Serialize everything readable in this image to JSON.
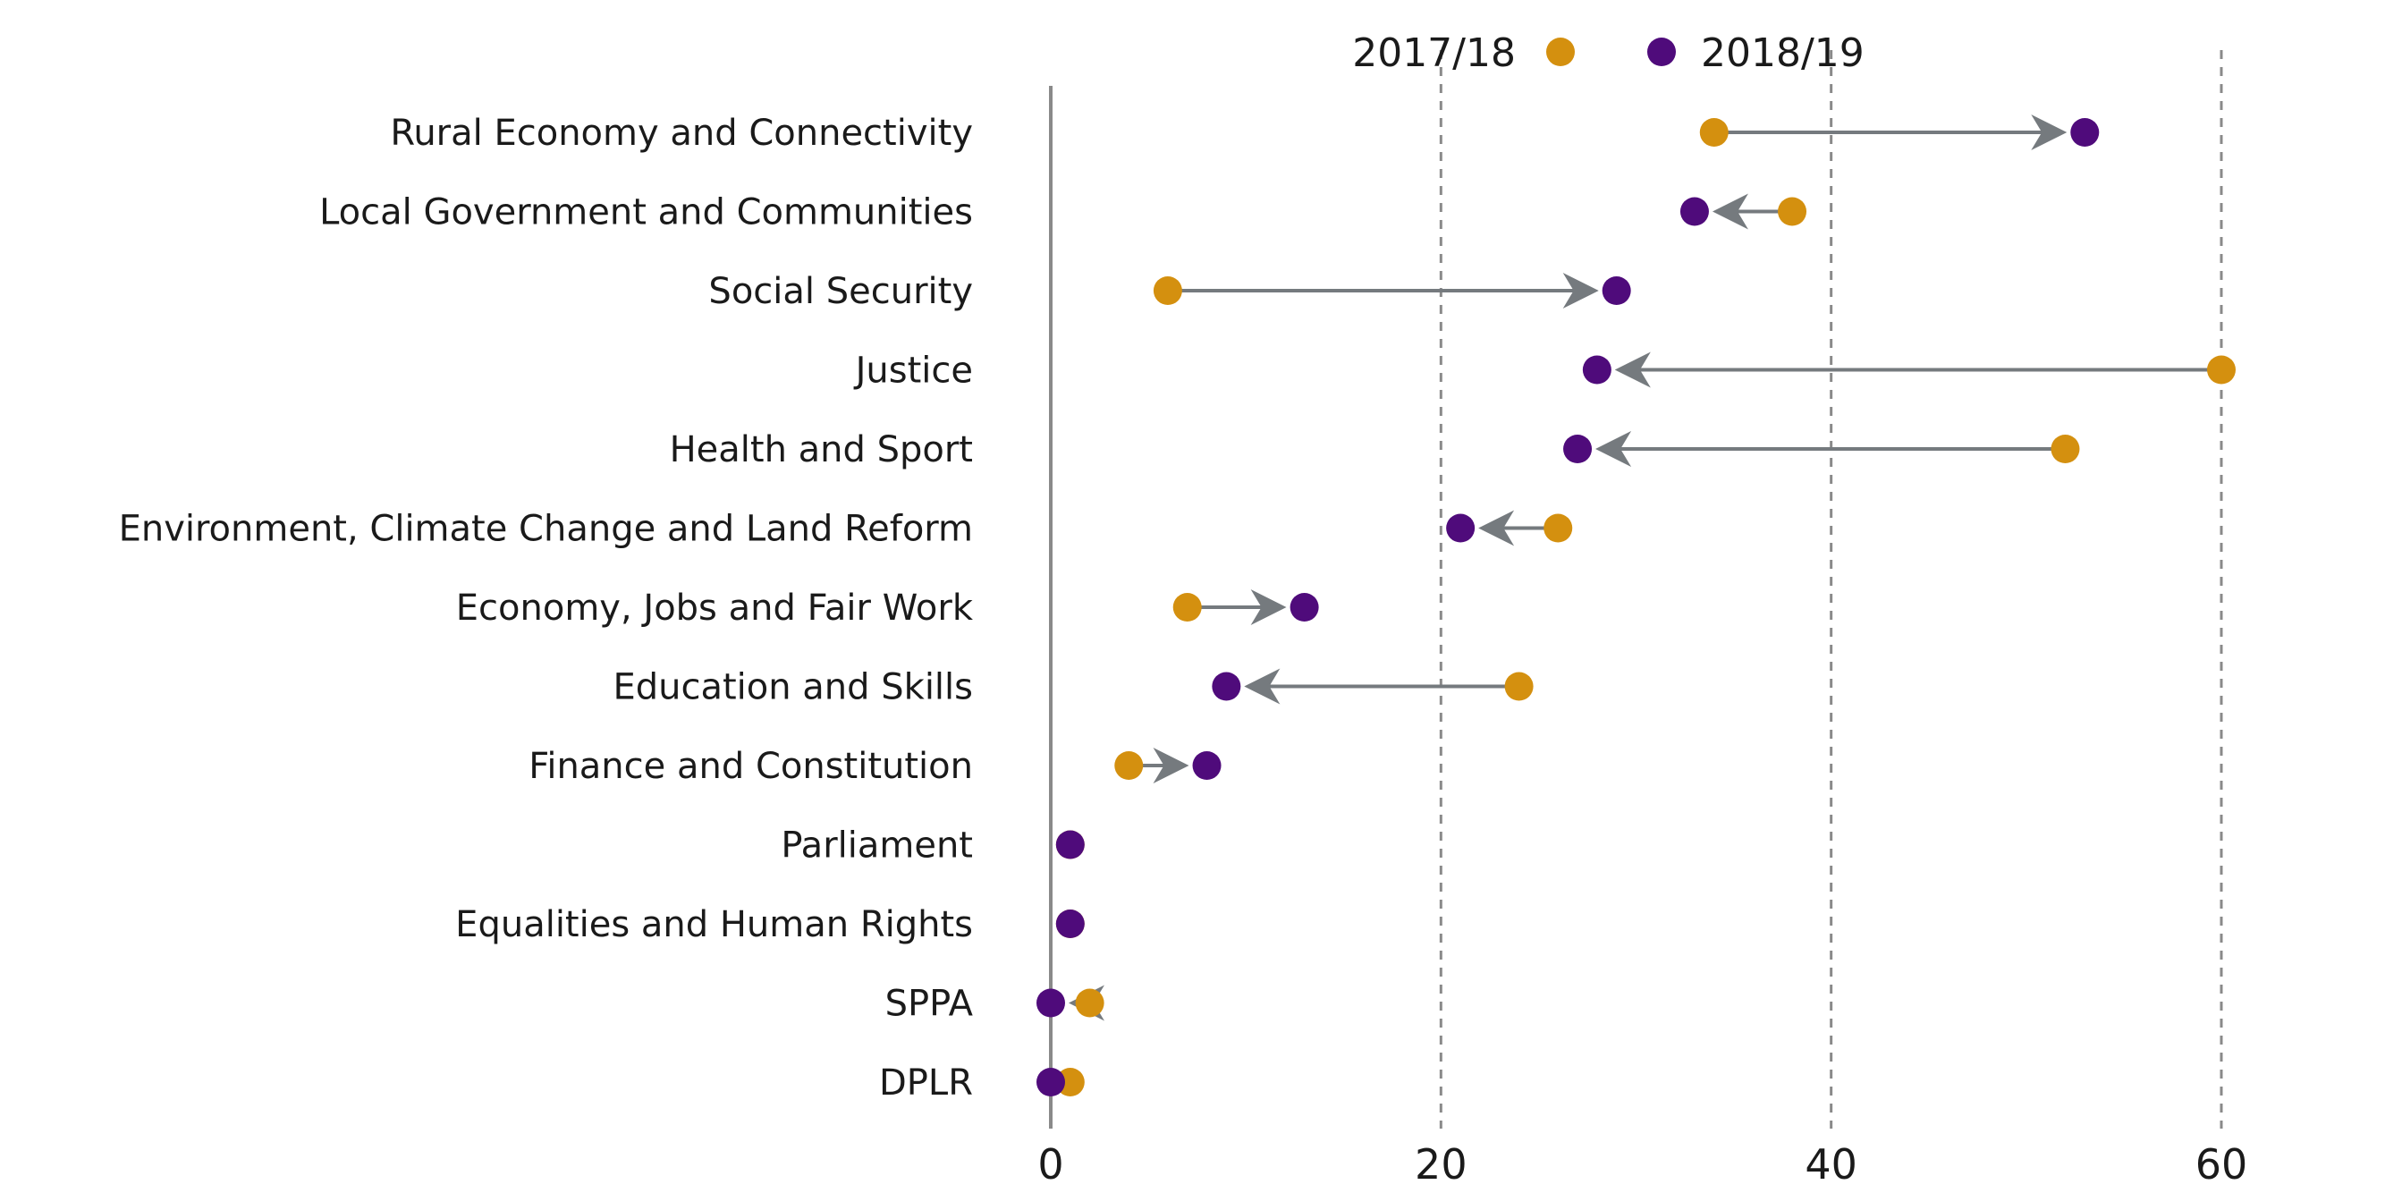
{
  "chart_data": {
    "type": "dumbbell",
    "title": "",
    "xlabel": "",
    "ylabel": "",
    "xlim": [
      0,
      60
    ],
    "x_ticks": [
      0,
      20,
      40,
      60
    ],
    "gridlines": [
      20,
      40,
      60
    ],
    "grid_style": "dashed vertical",
    "legend_position": "top",
    "categories": [
      "Rural Economy and Connectivity",
      "Local Government and Communities",
      "Social Security",
      "Justice",
      "Health and Sport",
      "Environment, Climate Change and Land Reform",
      "Economy, Jobs and Fair Work",
      "Education and Skills",
      "Finance and Constitution",
      "Parliament",
      "Equalities and Human Rights",
      "SPPA",
      "DPLR"
    ],
    "series": [
      {
        "name": "2017/18",
        "color": "#d4900f",
        "values": [
          34,
          38,
          6,
          60,
          52,
          26,
          7,
          24,
          4,
          1,
          1,
          2,
          1
        ]
      },
      {
        "name": "2018/19",
        "color": "#4f0b7b",
        "values": [
          53,
          33,
          29,
          28,
          27,
          21,
          13,
          9,
          8,
          1,
          1,
          0,
          0
        ]
      }
    ],
    "arrow_color": "#757a7e",
    "axis_color": "#8a8a8a",
    "grid_color": "#8a8a8a"
  }
}
